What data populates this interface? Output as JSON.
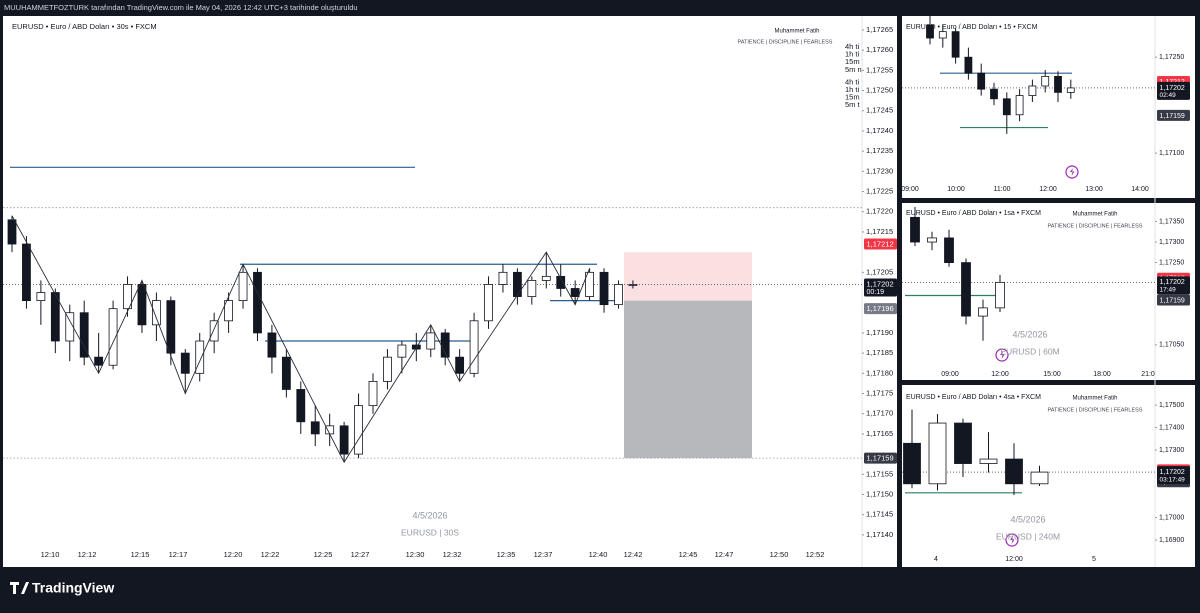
{
  "header": "MUUHAMMETFOZTURK tarafından TradingView.com ile May 04, 2026 12:42 UTC+3 tarihinde oluşturuldu",
  "brand": "TradingView",
  "chart_data": [
    {
      "type": "candlestick",
      "title": "EURUSD • Euro / ABD Doları • 30s • FXCM",
      "author": "Muhammet Fatih",
      "motto": "PATIENCE  |  DISCIPLINE  |  FEARLESS",
      "watermark_date": "4/5/2026",
      "watermark_symbol": "EURUSD | 30S",
      "overlay": [
        "4h ti",
        "1h ti",
        "15m",
        "5m n",
        "4h ti",
        "1h ti",
        "15m",
        "5m t"
      ],
      "ylim": [
        1.171375,
        1.172687
      ],
      "yticks": [
        {
          "value": 1.17265,
          "label": "1,17265"
        },
        {
          "value": 1.1726,
          "label": "1,17260"
        },
        {
          "value": 1.17255,
          "label": "1,17255"
        },
        {
          "value": 1.1725,
          "label": "1,17250"
        },
        {
          "value": 1.17245,
          "label": "1,17245"
        },
        {
          "value": 1.1724,
          "label": "1,17240"
        },
        {
          "value": 1.17235,
          "label": "1,17235"
        },
        {
          "value": 1.1723,
          "label": "1,17230"
        },
        {
          "value": 1.17225,
          "label": "1,17225"
        },
        {
          "value": 1.1722,
          "label": "1,17220"
        },
        {
          "value": 1.17215,
          "label": "1,17215"
        },
        {
          "value": 1.17205,
          "label": "1,17205"
        },
        {
          "value": 1.1719,
          "label": "1,17190"
        },
        {
          "value": 1.17185,
          "label": "1,17185"
        },
        {
          "value": 1.1718,
          "label": "1,17180"
        },
        {
          "value": 1.17175,
          "label": "1,17175"
        },
        {
          "value": 1.1717,
          "label": "1,17170"
        },
        {
          "value": 1.17165,
          "label": "1,17165"
        },
        {
          "value": 1.17155,
          "label": "1,17155"
        },
        {
          "value": 1.1715,
          "label": "1,17150"
        },
        {
          "value": 1.17145,
          "label": "1,17145"
        },
        {
          "value": 1.1714,
          "label": "1,17140"
        }
      ],
      "xticks": [
        "12:10",
        "12:12",
        "12:15",
        "12:17",
        "12:20",
        "12:22",
        "12:25",
        "12:27",
        "12:30",
        "12:32",
        "12:35",
        "12:37",
        "12:40",
        "12:42",
        "12:45",
        "12:47",
        "12:50",
        "12:52"
      ],
      "candles": [
        [
          1.17218,
          1.17219,
          1.1721,
          1.17212
        ],
        [
          1.17212,
          1.17214,
          1.17196,
          1.17198
        ],
        [
          1.17198,
          1.17203,
          1.17192,
          1.172
        ],
        [
          1.172,
          1.17201,
          1.17185,
          1.17188
        ],
        [
          1.17188,
          1.17197,
          1.17183,
          1.17195
        ],
        [
          1.17195,
          1.17198,
          1.17182,
          1.17184
        ],
        [
          1.17184,
          1.1719,
          1.1718,
          1.17182
        ],
        [
          1.17182,
          1.17198,
          1.17181,
          1.17196
        ],
        [
          1.17196,
          1.17204,
          1.17194,
          1.17202
        ],
        [
          1.17202,
          1.17203,
          1.1719,
          1.17192
        ],
        [
          1.17192,
          1.172,
          1.17188,
          1.17198
        ],
        [
          1.17198,
          1.17199,
          1.17182,
          1.17185
        ],
        [
          1.17185,
          1.17186,
          1.17175,
          1.1718
        ],
        [
          1.1718,
          1.1719,
          1.17178,
          1.17188
        ],
        [
          1.17188,
          1.17195,
          1.17185,
          1.17193
        ],
        [
          1.17193,
          1.172,
          1.1719,
          1.17198
        ],
        [
          1.17198,
          1.17207,
          1.17196,
          1.17205
        ],
        [
          1.17205,
          1.17206,
          1.17188,
          1.1719
        ],
        [
          1.1719,
          1.17192,
          1.1718,
          1.17184
        ],
        [
          1.17184,
          1.17186,
          1.17174,
          1.17176
        ],
        [
          1.17176,
          1.17178,
          1.17165,
          1.17168
        ],
        [
          1.17168,
          1.17172,
          1.17162,
          1.17165
        ],
        [
          1.17165,
          1.1717,
          1.17162,
          1.17167
        ],
        [
          1.17167,
          1.17168,
          1.17158,
          1.1716
        ],
        [
          1.1716,
          1.17175,
          1.17159,
          1.17172
        ],
        [
          1.17172,
          1.1718,
          1.1717,
          1.17178
        ],
        [
          1.17178,
          1.17186,
          1.17176,
          1.17184
        ],
        [
          1.17184,
          1.17188,
          1.1718,
          1.17187
        ],
        [
          1.17187,
          1.1719,
          1.17183,
          1.17186
        ],
        [
          1.17186,
          1.17192,
          1.17184,
          1.1719
        ],
        [
          1.1719,
          1.17191,
          1.17182,
          1.17184
        ],
        [
          1.17184,
          1.17186,
          1.17178,
          1.1718
        ],
        [
          1.1718,
          1.17195,
          1.17179,
          1.17193
        ],
        [
          1.17193,
          1.17204,
          1.17191,
          1.17202
        ],
        [
          1.17202,
          1.17207,
          1.172,
          1.17205
        ],
        [
          1.17205,
          1.17206,
          1.17197,
          1.17199
        ],
        [
          1.17199,
          1.17204,
          1.17197,
          1.17203
        ],
        [
          1.17203,
          1.1721,
          1.17201,
          1.17204
        ],
        [
          1.17204,
          1.17207,
          1.17199,
          1.17201
        ],
        [
          1.17201,
          1.17203,
          1.17197,
          1.17199
        ],
        [
          1.17199,
          1.17206,
          1.17198,
          1.17205
        ],
        [
          1.17205,
          1.17206,
          1.17195,
          1.17197
        ],
        [
          1.17197,
          1.17203,
          1.17196,
          1.17202
        ],
        [
          1.17202,
          1.17203,
          1.17201,
          1.17202
        ]
      ],
      "levels": [
        {
          "price": 1.17231,
          "color": "#2a5d8f"
        },
        {
          "price": 1.17207,
          "color": "#2a5d8f"
        },
        {
          "price": 1.17188,
          "color": "#2a5d8f"
        },
        {
          "price": 1.17198,
          "color": "#2a5d8f"
        },
        {
          "price": 1.17221,
          "color": "#9598a1",
          "style": "dotted"
        },
        {
          "price": 1.17159,
          "color": "#9598a1",
          "style": "dotted"
        }
      ],
      "position": {
        "stop": 1.1721,
        "entry": 1.17198,
        "target": 1.17159
      },
      "price_tags": [
        {
          "value": 1.17212,
          "label": "1,17212",
          "color": "#f23645"
        },
        {
          "value": 1.17196,
          "label": "1,17196",
          "color": "#787b86"
        },
        {
          "value": 1.17159,
          "label": "1,17159",
          "color": "#363a45"
        }
      ],
      "current_price": {
        "value": 1.17202,
        "label": "1,17202"
      },
      "countdown": "00:19"
    },
    {
      "type": "candlestick",
      "title": "EURUSD • Euro / ABD Doları • 15 • FXCM",
      "ylim": [
        1.17058,
        1.17316
      ],
      "yticks": [
        {
          "value": 1.1725,
          "label": "1,17250"
        },
        {
          "value": 1.171,
          "label": "1,17100"
        }
      ],
      "xticks": [
        "09:00",
        "10:00",
        "11:00",
        "12:00",
        "13:00",
        "14:00"
      ],
      "candles": [
        [
          1.173,
          1.17315,
          1.1727,
          1.1728
        ],
        [
          1.1728,
          1.173,
          1.17265,
          1.1729
        ],
        [
          1.1729,
          1.17295,
          1.1724,
          1.1725
        ],
        [
          1.1725,
          1.17265,
          1.17215,
          1.17225
        ],
        [
          1.17225,
          1.1724,
          1.1719,
          1.172
        ],
        [
          1.172,
          1.1721,
          1.17175,
          1.17185
        ],
        [
          1.17185,
          1.17195,
          1.1713,
          1.1716
        ],
        [
          1.1716,
          1.172,
          1.1715,
          1.1719
        ],
        [
          1.1719,
          1.17215,
          1.1718,
          1.17205
        ],
        [
          1.17205,
          1.1723,
          1.17195,
          1.1722
        ],
        [
          1.1722,
          1.17228,
          1.1718,
          1.17195
        ],
        [
          1.17195,
          1.17215,
          1.17185,
          1.17202
        ]
      ],
      "levels": [
        {
          "price": 1.17225,
          "color": "#2a5d8f"
        },
        {
          "price": 1.1714,
          "color": "#2e7d5b"
        }
      ],
      "price_tags": [
        {
          "value": 1.17212,
          "label": "1,17212",
          "color": "#f23645"
        },
        {
          "value": 1.17196,
          "label": "1,17196",
          "color": "#787b86"
        },
        {
          "value": 1.17159,
          "label": "1,17159",
          "color": "#363a45"
        }
      ],
      "current_price": {
        "value": 1.17202,
        "label": "1,17202"
      },
      "countdown": "02:49"
    },
    {
      "type": "candlestick",
      "title": "EURUSD • Euro / ABD Doları • 1sa • FXCM",
      "author": "Muhammet Fatih",
      "motto": "PATIENCE  |  DISCIPLINE  |  FEARLESS",
      "watermark_date": "4/5/2026",
      "watermark_symbol": "EURUSD | 60M",
      "ylim": [
        1.16989,
        1.1739
      ],
      "yticks": [
        {
          "value": 1.1735,
          "label": "1,17350"
        },
        {
          "value": 1.173,
          "label": "1,17300"
        },
        {
          "value": 1.1725,
          "label": "1,17250"
        },
        {
          "value": 1.1705,
          "label": "1,17050"
        }
      ],
      "xticks": [
        "09:00",
        "12:00",
        "15:00",
        "18:00",
        "21:0"
      ],
      "candles": [
        [
          1.1736,
          1.17385,
          1.1729,
          1.173
        ],
        [
          1.173,
          1.17325,
          1.1728,
          1.1731
        ],
        [
          1.1731,
          1.1733,
          1.1724,
          1.1725
        ],
        [
          1.1725,
          1.1726,
          1.171,
          1.1712
        ],
        [
          1.1712,
          1.1716,
          1.1706,
          1.1714
        ],
        [
          1.1714,
          1.1722,
          1.1713,
          1.17202
        ]
      ],
      "levels": [
        {
          "price": 1.1717,
          "color": "#2e7d5b"
        }
      ],
      "price_tags": [
        {
          "value": 1.17212,
          "label": "1,17212",
          "color": "#f23645"
        },
        {
          "value": 1.17196,
          "label": "1,17196",
          "color": "#787b86"
        },
        {
          "value": 1.17159,
          "label": "1,17159",
          "color": "#363a45"
        }
      ],
      "current_price": {
        "value": 1.17202,
        "label": "1,17202"
      },
      "countdown": "17:49"
    },
    {
      "type": "candlestick",
      "title": "EURUSD • Euro / ABD Doları • 4sa • FXCM",
      "author": "Muhammet Fatih",
      "motto": "PATIENCE  |  DISCIPLINE  |  FEARLESS",
      "watermark_date": "4/5/2026",
      "watermark_symbol": "EURUSD | 240M",
      "ylim": [
        1.16789,
        1.17567
      ],
      "yticks": [
        {
          "value": 1.175,
          "label": "1,17500"
        },
        {
          "value": 1.174,
          "label": "1,17400"
        },
        {
          "value": 1.173,
          "label": "1,17300"
        },
        {
          "value": 1.17,
          "label": "1,17000"
        },
        {
          "value": 1.169,
          "label": "1,16900"
        }
      ],
      "xticks": [
        "4",
        "12:00",
        "5"
      ],
      "candles": [
        [
          1.1733,
          1.1748,
          1.1713,
          1.1715
        ],
        [
          1.1715,
          1.1746,
          1.1712,
          1.1742
        ],
        [
          1.1742,
          1.1744,
          1.1718,
          1.1724
        ],
        [
          1.1724,
          1.1738,
          1.172,
          1.1726
        ],
        [
          1.1726,
          1.1733,
          1.171,
          1.1715
        ],
        [
          1.1715,
          1.1723,
          1.1714,
          1.17202
        ]
      ],
      "levels": [
        {
          "price": 1.1711,
          "color": "#2e7d5b"
        }
      ],
      "price_tags": [
        {
          "value": 1.17212,
          "label": "1,17212",
          "color": "#f23645"
        },
        {
          "value": 1.17196,
          "label": "1,17196",
          "color": "#787b86"
        },
        {
          "value": 1.17159,
          "label": "1,17159",
          "color": "#363a45"
        }
      ],
      "current_price": {
        "value": 1.17202,
        "label": "1,17202"
      },
      "countdown": "03:17:49"
    }
  ]
}
